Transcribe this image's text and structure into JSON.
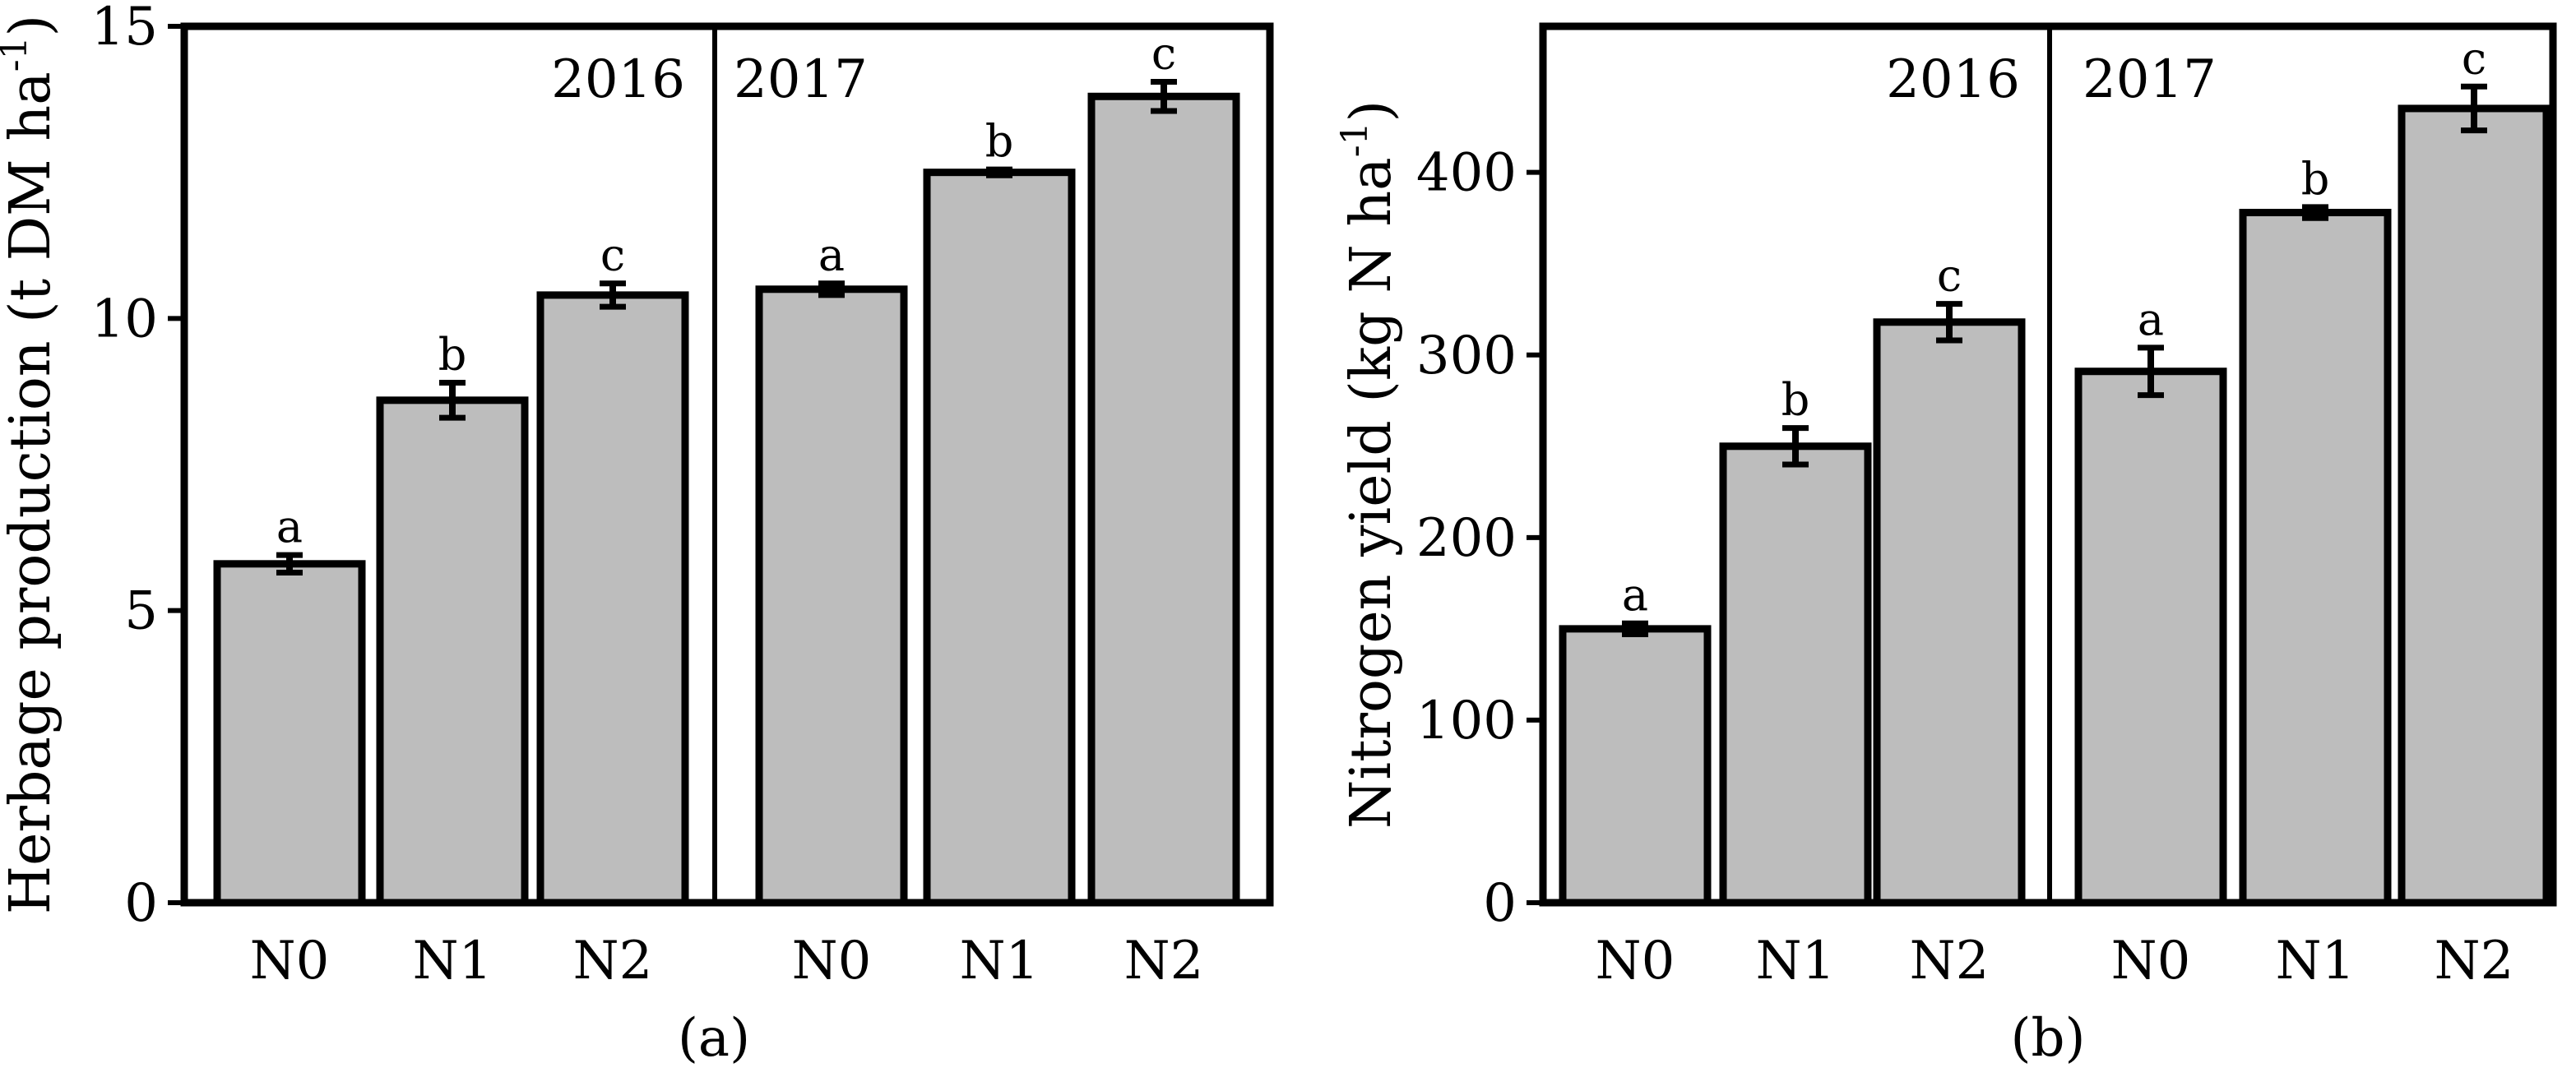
{
  "colors": {
    "bar_fill": "#bdbdbd",
    "stroke": "#000000",
    "background": "#ffffff"
  },
  "chart_data": [
    {
      "type": "bar",
      "panel_label": "(a)",
      "ylabel_main": "Herbage production (t DM ha",
      "ylabel_sup": "-1",
      "ylabel_close": ")",
      "ylim": [
        0,
        15
      ],
      "yticks": [
        "0",
        "5",
        "10",
        "15"
      ],
      "ytick_values": [
        0,
        5,
        10,
        15
      ],
      "groups": [
        {
          "label": "2016",
          "categories": [
            "N0",
            "N1",
            "N2"
          ],
          "values": [
            5.8,
            8.6,
            10.4
          ],
          "errors": [
            0.15,
            0.3,
            0.2
          ],
          "letters": [
            "a",
            "b",
            "c"
          ]
        },
        {
          "label": "2017",
          "categories": [
            "N0",
            "N1",
            "N2"
          ],
          "values": [
            10.5,
            12.5,
            13.8
          ],
          "errors": [
            0.1,
            0.05,
            0.25
          ],
          "letters": [
            "a",
            "b",
            "c"
          ]
        }
      ]
    },
    {
      "type": "bar",
      "panel_label": "(b)",
      "ylabel_main": "Nitrogen yield (kg N ha",
      "ylabel_sup": "-1",
      "ylabel_close": ")",
      "ylim": [
        0,
        480
      ],
      "yticks": [
        "0",
        "100",
        "200",
        "300",
        "400"
      ],
      "ytick_values": [
        0,
        100,
        200,
        300,
        400
      ],
      "groups": [
        {
          "label": "2016",
          "categories": [
            "N0",
            "N1",
            "N2"
          ],
          "values": [
            150,
            250,
            318
          ],
          "errors": [
            3,
            10,
            10
          ],
          "letters": [
            "a",
            "b",
            "c"
          ]
        },
        {
          "label": "2017",
          "categories": [
            "N0",
            "N1",
            "N2"
          ],
          "values": [
            291,
            378,
            435
          ],
          "errors": [
            13,
            3,
            12
          ],
          "letters": [
            "a",
            "b",
            "c"
          ]
        }
      ]
    }
  ]
}
